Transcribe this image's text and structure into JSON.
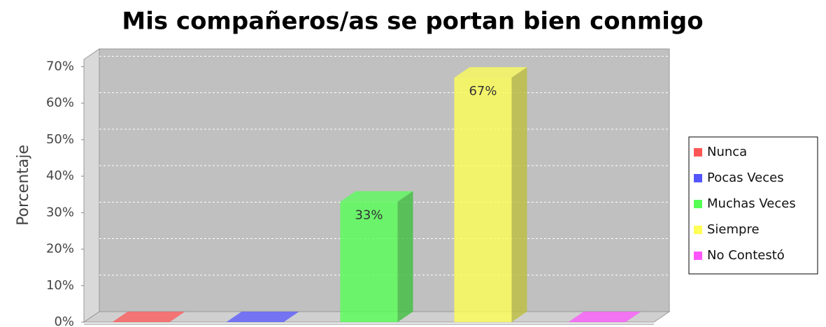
{
  "chart_data": {
    "type": "bar3d",
    "title": "Mis compañeros/as se portan bien conmigo",
    "y_label": "Porcentaje",
    "categories": [
      "Nunca",
      "Pocas Veces",
      "Muchas Veces",
      "Siempre",
      "No Contestó"
    ],
    "values": [
      0,
      0,
      33,
      67,
      0
    ],
    "value_labels": [
      null,
      null,
      "33%",
      "67%",
      null
    ],
    "colors": [
      "#ff5555",
      "#5555ff",
      "#55ff55",
      "#ffff55",
      "#ff55ff"
    ],
    "ylim": [
      0,
      72
    ],
    "yticks": [
      {
        "value": 0,
        "label": "0%"
      },
      {
        "value": 10,
        "label": "10%"
      },
      {
        "value": 20,
        "label": "20%"
      },
      {
        "value": 30,
        "label": "30%"
      },
      {
        "value": 40,
        "label": "40%"
      },
      {
        "value": 50,
        "label": "50%"
      },
      {
        "value": 60,
        "label": "60%"
      },
      {
        "value": 70,
        "label": "70%"
      }
    ],
    "grid": true,
    "legend": "right"
  }
}
